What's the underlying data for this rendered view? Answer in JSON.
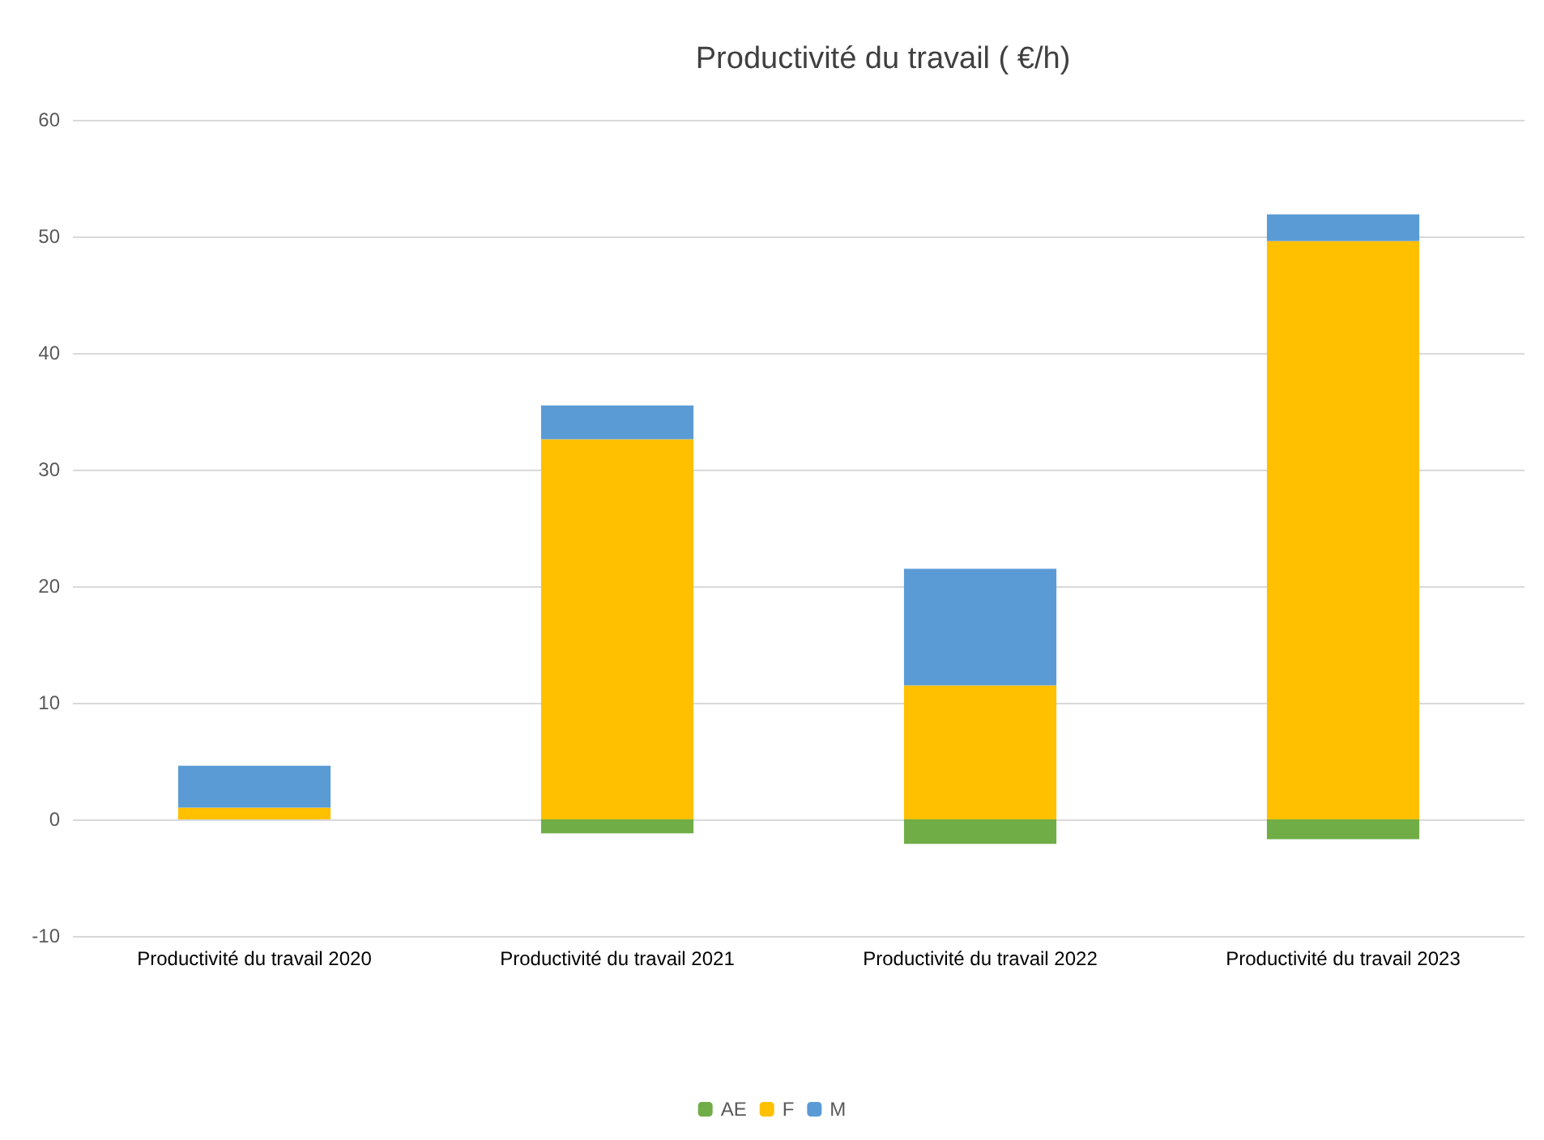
{
  "chart_data": {
    "type": "bar",
    "title": "Productivité du travail ( €/h)",
    "stacked": true,
    "categories": [
      "Productivité du travail 2020",
      "Productivité du travail 2021",
      "Productivité du travail 2022",
      "Productivité du travail 2023"
    ],
    "series": [
      {
        "name": "AE",
        "color": "#70ad47",
        "values": [
          0,
          -1.2,
          -2.1,
          -1.7
        ]
      },
      {
        "name": "F",
        "color": "#ffc000",
        "values": [
          1.0,
          32.6,
          11.5,
          49.6
        ]
      },
      {
        "name": "M",
        "color": "#5b9bd5",
        "values": [
          3.6,
          2.9,
          10.0,
          2.3
        ]
      }
    ],
    "ylim": [
      -10,
      60
    ],
    "yticks": [
      -10,
      0,
      10,
      20,
      30,
      40,
      50,
      60
    ],
    "grid": "y",
    "legend": "bottom"
  }
}
